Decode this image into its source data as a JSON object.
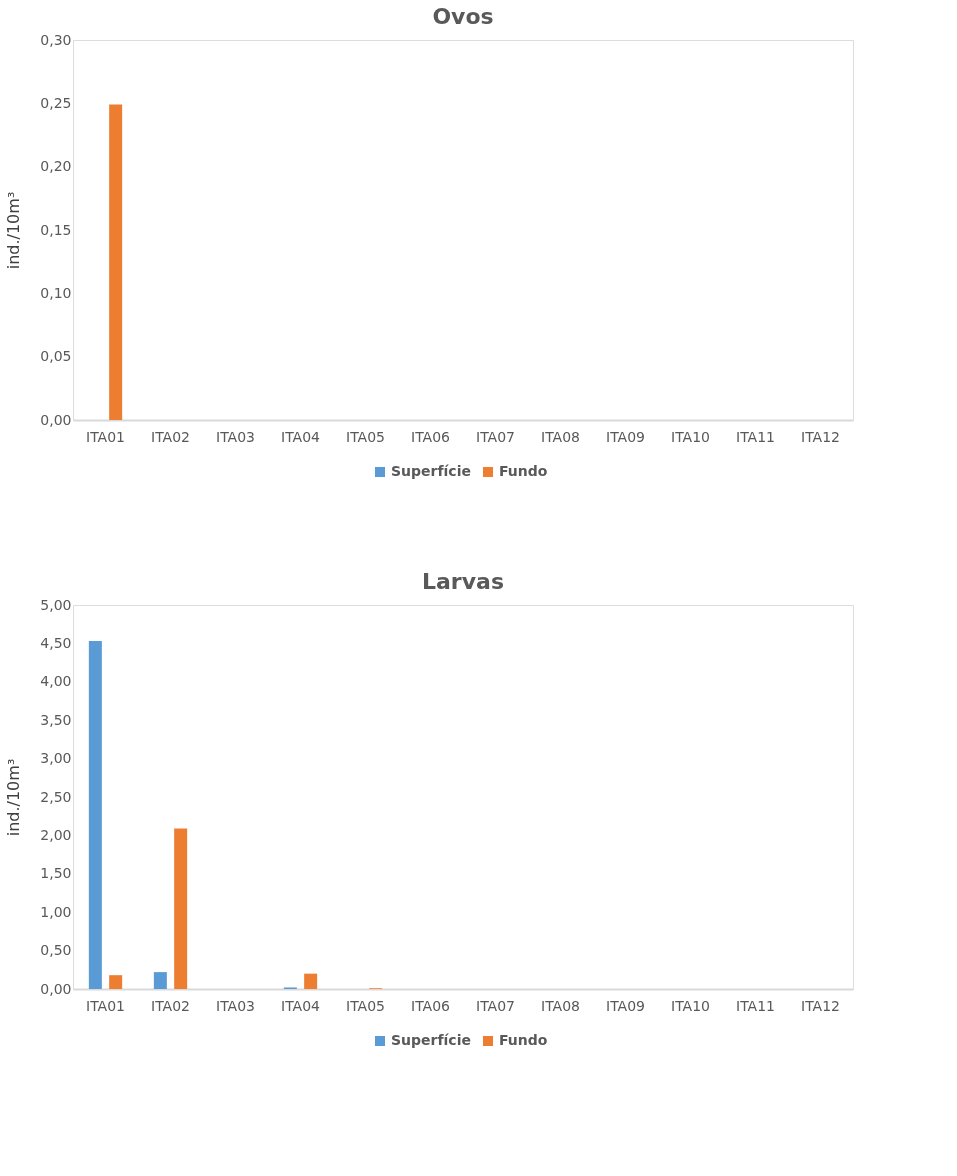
{
  "chart_data": [
    {
      "type": "bar",
      "title": "Ovos",
      "ylabel": "ind./10m³",
      "categories": [
        "ITA01",
        "ITA02",
        "ITA03",
        "ITA04",
        "ITA05",
        "ITA06",
        "ITA07",
        "ITA08",
        "ITA09",
        "ITA10",
        "ITA11",
        "ITA12"
      ],
      "series": [
        {
          "name": "Superfície",
          "color": "#5b9bd5",
          "values": [
            0,
            0,
            0,
            0,
            0,
            0,
            0,
            0,
            0,
            0,
            0,
            0
          ]
        },
        {
          "name": "Fundo",
          "color": "#ed7d31",
          "values": [
            0.249,
            0,
            0,
            0,
            0,
            0,
            0,
            0,
            0,
            0,
            0,
            0
          ]
        }
      ],
      "ylim": [
        0,
        0.3
      ],
      "yticks": [
        {
          "value": 0,
          "label": "0,00"
        },
        {
          "value": 0.05,
          "label": "0,05"
        },
        {
          "value": 0.1,
          "label": "0,10"
        },
        {
          "value": 0.15,
          "label": "0,15"
        },
        {
          "value": 0.2,
          "label": "0,20"
        },
        {
          "value": 0.25,
          "label": "0,25"
        },
        {
          "value": 0.3,
          "label": "0,30"
        }
      ],
      "grid": false,
      "legend": "bottom"
    },
    {
      "type": "bar",
      "title": "Larvas",
      "ylabel": "ind./10m³",
      "categories": [
        "ITA01",
        "ITA02",
        "ITA03",
        "ITA04",
        "ITA05",
        "ITA06",
        "ITA07",
        "ITA08",
        "ITA09",
        "ITA10",
        "ITA11",
        "ITA12"
      ],
      "series": [
        {
          "name": "Superfície",
          "color": "#5b9bd5",
          "values": [
            4.53,
            0.22,
            0,
            0.02,
            0,
            0,
            0,
            0,
            0,
            0,
            0,
            0
          ]
        },
        {
          "name": "Fundo",
          "color": "#ed7d31",
          "values": [
            0.18,
            2.09,
            0,
            0.2,
            0.01,
            0,
            0,
            0,
            0,
            0,
            0,
            0
          ]
        }
      ],
      "ylim": [
        0,
        5
      ],
      "yticks": [
        {
          "value": 0,
          "label": "0,00"
        },
        {
          "value": 0.5,
          "label": "0,50"
        },
        {
          "value": 1,
          "label": "1,00"
        },
        {
          "value": 1.5,
          "label": "1,50"
        },
        {
          "value": 2,
          "label": "2,00"
        },
        {
          "value": 2.5,
          "label": "2,50"
        },
        {
          "value": 3,
          "label": "3,00"
        },
        {
          "value": 3.5,
          "label": "3,50"
        },
        {
          "value": 4,
          "label": "4,00"
        },
        {
          "value": 4.5,
          "label": "4,50"
        },
        {
          "value": 5,
          "label": "5,00"
        }
      ],
      "grid": false,
      "legend": "bottom"
    }
  ]
}
